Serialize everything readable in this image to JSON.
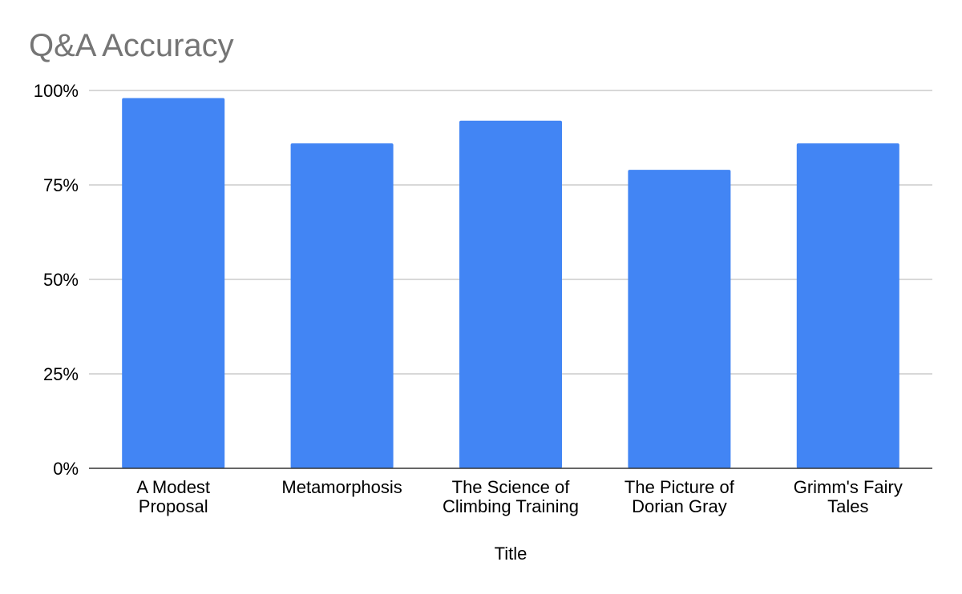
{
  "chart_data": {
    "type": "bar",
    "title": "Q&A Accuracy",
    "xlabel": "Title",
    "ylabel": "",
    "categories": [
      [
        "A Modest",
        "Proposal"
      ],
      [
        "Metamorphosis"
      ],
      [
        "The Science of",
        "Climbing Training"
      ],
      [
        "The Picture of",
        "Dorian Gray"
      ],
      [
        "Grimm's Fairy",
        "Tales"
      ]
    ],
    "values": [
      0.98,
      0.86,
      0.92,
      0.79,
      0.86
    ],
    "ylim": [
      0,
      1
    ],
    "yticks": [
      {
        "value": 0,
        "label": "0%"
      },
      {
        "value": 0.25,
        "label": "25%"
      },
      {
        "value": 0.5,
        "label": "50%"
      },
      {
        "value": 0.75,
        "label": "75%"
      },
      {
        "value": 1,
        "label": "100%"
      }
    ],
    "grid": true,
    "legend": "none",
    "colors": {
      "bar": "#4285f4",
      "grid": "#cccccc",
      "axis": "#333333",
      "title": "#757575"
    }
  }
}
